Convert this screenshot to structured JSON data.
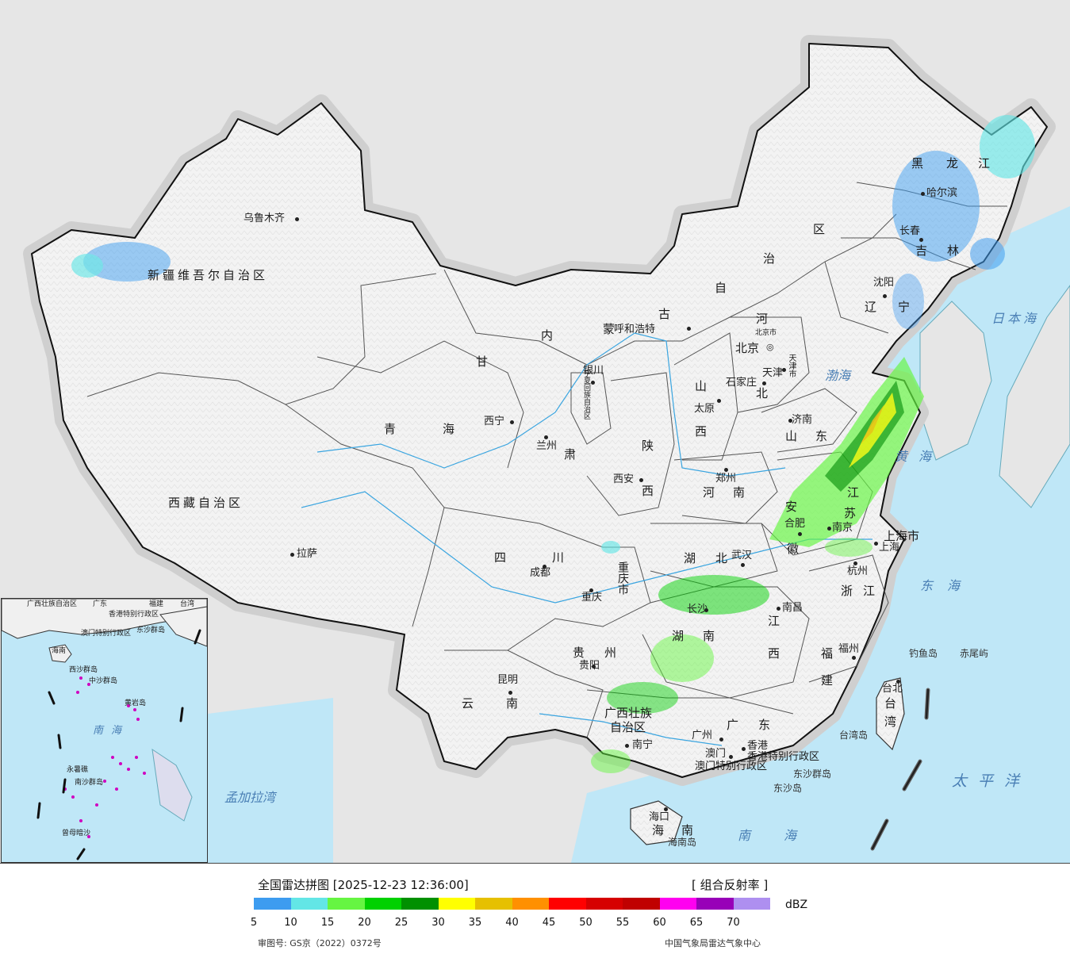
{
  "provinces": {
    "xinjiang": "新疆维吾尔自治区",
    "xizang": "西藏自治区",
    "qinghai_1": "青",
    "qinghai_2": "海",
    "gansu_1": "甘",
    "gansu_2": "肃",
    "neimenggu_1": "内",
    "neimenggu_2": "蒙",
    "neimenggu_3": "古",
    "neimenggu_4": "自",
    "neimenggu_5": "治",
    "neimenggu_6": "区",
    "heilongjiang_1": "黑",
    "heilongjiang_2": "龙",
    "heilongjiang_3": "江",
    "jilin_1": "吉",
    "jilin_2": "林",
    "liaoning_1": "辽",
    "liaoning_2": "宁",
    "hebei_1": "河",
    "hebei_2": "北",
    "shanxi_1": "山",
    "shanxi_2": "西",
    "shaanxi_1": "陕",
    "shaanxi_2": "西",
    "shandong_1": "山",
    "shandong_2": "东",
    "henan_1": "河",
    "henan_2": "南",
    "ningxia": "宁夏回族自治区",
    "sichuan_1": "四",
    "sichuan_2": "川",
    "chongqing": "重庆市",
    "hubei_1": "湖",
    "hubei_2": "北",
    "hunan_1": "湖",
    "hunan_2": "南",
    "anhui_1": "安",
    "anhui_2": "徽",
    "jiangsu_1": "江",
    "jiangsu_2": "苏",
    "shanghai": "上海市",
    "zhejiang_1": "浙",
    "zhejiang_2": "江",
    "jiangxi_1": "江",
    "jiangxi_2": "西",
    "fujian_1": "福",
    "fujian_2": "建",
    "guizhou_1": "贵",
    "guizhou_2": "州",
    "yunnan_1": "云",
    "yunnan_2": "南",
    "guangxi_1": "广西壮族",
    "guangxi_2": "自治区",
    "guangdong_1": "广",
    "guangdong_2": "东",
    "hainan_1": "海",
    "hainan_2": "南",
    "taiwan_1": "台",
    "taiwan_2": "湾",
    "hongkong": "香港特别行政区",
    "macau": "澳门特别行政区",
    "beijing_city": "北京市",
    "tianjin_city": "天津市"
  },
  "cities": {
    "urumqi": "乌鲁木齐",
    "lhasa": "拉萨",
    "xining": "西宁",
    "lanzhou": "兰州",
    "yinchuan": "银川",
    "hohhot": "呼和浩特",
    "beijing": "北京",
    "tianjin": "天津",
    "shijiazhuang": "石家庄",
    "taiyuan": "太原",
    "jinan": "济南",
    "zhengzhou": "郑州",
    "xian": "西安",
    "chengdu": "成都",
    "chongqing": "重庆",
    "wuhan": "武汉",
    "hefei": "合肥",
    "nanjing": "南京",
    "shanghai": "上海",
    "hangzhou": "杭州",
    "nanchang": "南昌",
    "changsha": "长沙",
    "fuzhou": "福州",
    "guiyang": "贵阳",
    "kunming": "昆明",
    "nanning": "南宁",
    "guangzhou": "广州",
    "hongkong": "香港",
    "macau": "澳门",
    "haikou": "海口",
    "taipei": "台北",
    "shenyang": "沈阳",
    "changchun": "长春",
    "harbin": "哈尔滨"
  },
  "seas": {
    "bohai": "渤海",
    "huanghai": "黄海",
    "donghai": "东海",
    "nanhai": "南海",
    "japan_sea": "日本海",
    "pacific": "太平洋",
    "bengal": "孟加拉湾"
  },
  "islands": {
    "diaoyu": "钓鱼岛",
    "chiwei": "赤尾屿",
    "taiwan_island": "台湾岛",
    "dongsha_islands": "东沙群岛",
    "dongsha_island": "东沙岛",
    "hainan_island": "海南岛"
  },
  "inset": {
    "guangxi": "广西壮族自治区",
    "guangdong": "广东",
    "fujian": "福建",
    "taiwan": "台湾",
    "hongkong": "香港特别行政区",
    "macau": "澳门特别行政区",
    "dongsha": "东沙群岛",
    "hainan": "海南",
    "xisha": "西沙群岛",
    "zhongsha": "中沙群岛",
    "nansha": "南沙群岛",
    "huangyan": "黄岩岛",
    "nanhai": "南海",
    "yongshu": "永暑礁",
    "zengmu": "曾母暗沙"
  },
  "legend": {
    "title": "全国雷达拼图 [2025-12-23 12:36:00]",
    "product": "[ 组合反射率 ]",
    "unit": "dBZ",
    "colors": [
      "#3d9cf0",
      "#63e6e6",
      "#66f542",
      "#00d100",
      "#009000",
      "#ffff00",
      "#e6c000",
      "#ff9000",
      "#ff0000",
      "#d60000",
      "#c00000",
      "#ff00f0",
      "#9800b8",
      "#ae8ff0"
    ],
    "ticks": [
      "5",
      "10",
      "15",
      "20",
      "25",
      "30",
      "35",
      "40",
      "45",
      "50",
      "55",
      "60",
      "65",
      "70"
    ],
    "review_no": "审图号: GS京（2022）0372号",
    "source": "中国气象局雷达气象中心"
  }
}
